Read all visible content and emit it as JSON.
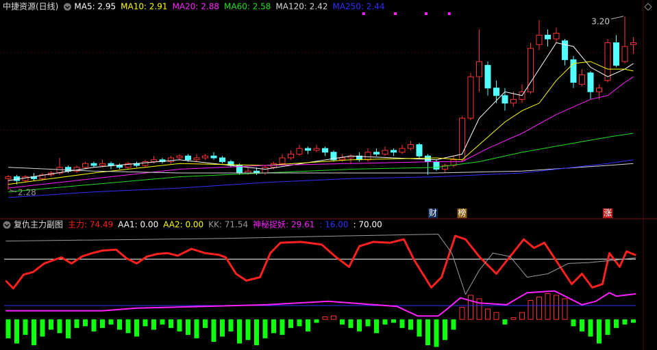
{
  "chart_data": [
    {
      "type": "candlestick",
      "title": "中捷资源(日线)",
      "up_color": "#ff3232",
      "down_color": "#54ffff",
      "open": [
        2.34,
        2.35,
        2.33,
        2.35,
        2.34,
        2.36,
        2.37,
        2.4,
        2.38,
        2.4,
        2.42,
        2.41,
        2.42,
        2.41,
        2.4,
        2.42,
        2.41,
        2.43,
        2.44,
        2.43,
        2.45,
        2.46,
        2.44,
        2.45,
        2.46,
        2.45,
        2.43,
        2.41,
        2.37,
        2.38,
        2.37,
        2.4,
        2.42,
        2.45,
        2.47,
        2.5,
        2.49,
        2.5,
        2.48,
        2.44,
        2.45,
        2.46,
        2.44,
        2.48,
        2.47,
        2.49,
        2.48,
        2.5,
        2.52,
        2.46,
        2.43,
        2.39,
        2.41,
        2.44,
        2.66,
        2.88,
        2.94,
        2.82,
        2.78,
        2.74,
        2.76,
        2.8,
        3.05,
        3.1,
        3.08,
        3.07,
        2.97,
        2.84,
        2.9,
        2.8,
        2.86,
        3.06,
        2.96,
        3.05
      ],
      "close": [
        2.35,
        2.33,
        2.35,
        2.34,
        2.36,
        2.37,
        2.4,
        2.38,
        2.4,
        2.42,
        2.41,
        2.42,
        2.41,
        2.4,
        2.42,
        2.41,
        2.43,
        2.44,
        2.43,
        2.45,
        2.46,
        2.44,
        2.45,
        2.46,
        2.45,
        2.43,
        2.41,
        2.37,
        2.38,
        2.37,
        2.4,
        2.42,
        2.45,
        2.47,
        2.5,
        2.49,
        2.5,
        2.48,
        2.44,
        2.45,
        2.46,
        2.44,
        2.48,
        2.47,
        2.49,
        2.48,
        2.5,
        2.52,
        2.46,
        2.43,
        2.39,
        2.41,
        2.44,
        2.66,
        2.88,
        2.96,
        2.82,
        2.78,
        2.74,
        2.76,
        2.8,
        3.03,
        3.1,
        3.08,
        3.11,
        2.97,
        2.85,
        2.89,
        2.8,
        2.82,
        3.06,
        2.94,
        3.04,
        3.06
      ],
      "high": [
        2.36,
        2.36,
        2.36,
        2.37,
        2.37,
        2.38,
        2.45,
        2.41,
        2.41,
        2.43,
        2.43,
        2.44,
        2.43,
        2.42,
        2.43,
        2.43,
        2.44,
        2.46,
        2.45,
        2.46,
        2.47,
        2.47,
        2.47,
        2.47,
        2.48,
        2.46,
        2.44,
        2.42,
        2.4,
        2.4,
        2.41,
        2.43,
        2.47,
        2.49,
        2.52,
        2.51,
        2.52,
        2.51,
        2.49,
        2.47,
        2.47,
        2.48,
        2.5,
        2.5,
        2.51,
        2.5,
        2.52,
        2.54,
        2.53,
        2.47,
        2.44,
        2.42,
        2.46,
        2.67,
        2.9,
        3.13,
        2.96,
        2.86,
        2.82,
        2.8,
        2.84,
        3.06,
        3.18,
        3.13,
        3.14,
        3.08,
        2.99,
        2.92,
        2.91,
        2.84,
        3.08,
        3.1,
        3.2,
        3.09
      ],
      "low": [
        2.28,
        2.31,
        2.32,
        2.33,
        2.33,
        2.35,
        2.36,
        2.37,
        2.37,
        2.39,
        2.4,
        2.4,
        2.39,
        2.39,
        2.39,
        2.4,
        2.4,
        2.42,
        2.42,
        2.42,
        2.44,
        2.43,
        2.43,
        2.44,
        2.44,
        2.42,
        2.4,
        2.36,
        2.36,
        2.36,
        2.36,
        2.39,
        2.41,
        2.44,
        2.46,
        2.47,
        2.48,
        2.46,
        2.43,
        2.43,
        2.42,
        2.43,
        2.43,
        2.46,
        2.46,
        2.46,
        2.47,
        2.49,
        2.45,
        2.36,
        2.38,
        2.37,
        2.4,
        2.43,
        2.65,
        2.8,
        2.78,
        2.74,
        2.7,
        2.72,
        2.74,
        2.79,
        3.02,
        3.04,
        3.06,
        2.94,
        2.82,
        2.83,
        2.76,
        2.76,
        2.85,
        2.93,
        2.95,
        3.0
      ],
      "ylim": [
        2.2,
        3.25
      ],
      "series": [
        {
          "name": "MA5",
          "label": "MA5: 2.95",
          "color": "#ffffff",
          "x": [
            0,
            10,
            20,
            30,
            40,
            50,
            53,
            55,
            58,
            60,
            62,
            64,
            66,
            68,
            70,
            72,
            73
          ],
          "values": [
            2.33,
            2.4,
            2.44,
            2.39,
            2.46,
            2.44,
            2.47,
            2.66,
            2.8,
            2.78,
            2.92,
            3.06,
            3.04,
            2.93,
            2.88,
            2.92,
            2.95
          ]
        },
        {
          "name": "MA10",
          "label": "MA10: 2.91",
          "color": "#ffff00",
          "x": [
            0,
            10,
            20,
            30,
            40,
            50,
            53,
            55,
            58,
            60,
            62,
            64,
            66,
            68,
            70,
            72,
            73
          ],
          "values": [
            2.31,
            2.37,
            2.42,
            2.41,
            2.44,
            2.45,
            2.44,
            2.52,
            2.64,
            2.7,
            2.74,
            2.86,
            2.95,
            2.96,
            2.92,
            2.92,
            2.91
          ]
        },
        {
          "name": "MA20",
          "label": "MA20: 2.88",
          "color": "#ff20ff",
          "x": [
            0,
            10,
            20,
            30,
            40,
            50,
            53,
            56,
            60,
            64,
            68,
            70,
            72,
            73
          ],
          "values": [
            2.29,
            2.34,
            2.39,
            2.41,
            2.42,
            2.43,
            2.43,
            2.5,
            2.58,
            2.68,
            2.76,
            2.78,
            2.85,
            2.88
          ]
        },
        {
          "name": "MA60",
          "label": "MA60: 2.58",
          "color": "#20e020",
          "x": [
            0,
            10,
            20,
            30,
            40,
            50,
            55,
            60,
            65,
            70,
            73
          ],
          "values": [
            2.27,
            2.31,
            2.35,
            2.37,
            2.39,
            2.4,
            2.43,
            2.48,
            2.52,
            2.56,
            2.58
          ]
        },
        {
          "name": "MA120",
          "label": "MA120: 2.42",
          "color": "#d8d8d8",
          "x": [
            0,
            10,
            20,
            30,
            40,
            50,
            60,
            70,
            73
          ],
          "values": [
            2.4,
            2.38,
            2.37,
            2.37,
            2.37,
            2.37,
            2.38,
            2.41,
            2.42
          ]
        },
        {
          "name": "MA250",
          "label": "MA250: 2.44",
          "color": "#3030ff",
          "x": [
            0,
            10,
            20,
            30,
            40,
            50,
            60,
            70,
            73
          ],
          "values": [
            2.24,
            2.27,
            2.29,
            2.32,
            2.34,
            2.35,
            2.37,
            2.42,
            2.44
          ]
        }
      ],
      "annotations": [
        {
          "x": 72,
          "value": 3.2,
          "label": "3.20"
        },
        {
          "x": 0,
          "value": 2.28,
          "label": "2.28"
        }
      ],
      "markers": [
        {
          "x": 49.6,
          "text": "财",
          "color": "#0a2a5a"
        },
        {
          "x": 53,
          "text": "榜",
          "color": "#8a5a10"
        },
        {
          "x": 70,
          "text": "涨",
          "color": "#c01818"
        }
      ],
      "signals": {
        "color": "#ff20ff",
        "x": [
          41.5,
          45.2,
          48.8,
          51.5
        ]
      }
    },
    {
      "type": "indicator",
      "title": "复仇主力副图",
      "ylim": [
        -34,
        105
      ],
      "bars": {
        "up_color": "#ff3232",
        "down_color": "#10ff10",
        "values": [
          -22,
          -28,
          -18,
          -30,
          -20,
          -12,
          -16,
          -22,
          -10,
          -8,
          -14,
          -10,
          -6,
          -12,
          -16,
          -20,
          -8,
          -12,
          -6,
          -10,
          -14,
          -18,
          -22,
          -10,
          -26,
          -20,
          -14,
          -28,
          -24,
          -30,
          -22,
          -16,
          -18,
          -10,
          -8,
          -14,
          -4,
          3,
          4,
          -6,
          -10,
          -14,
          -8,
          -16,
          -6,
          -4,
          -10,
          -12,
          -20,
          -30,
          -32,
          -24,
          -12,
          14,
          28,
          24,
          12,
          8,
          -6,
          2,
          8,
          22,
          26,
          30,
          28,
          24,
          -8,
          -14,
          -20,
          -28,
          -18,
          -10,
          -6,
          -4
        ]
      },
      "hlines": [
        {
          "value": 16,
          "label": ": 16.00",
          "color": "#3030ff"
        },
        {
          "value": 70,
          "label": ": 70.00",
          "color": "#ffffff"
        }
      ],
      "series": [
        {
          "name": "主力",
          "label": "主力: 74.49",
          "color": "#ff2020",
          "width": 3,
          "x": [
            -0.3,
            0.6,
            1.8,
            2.9,
            4.2,
            6.2,
            7.4,
            8.6,
            9.8,
            11,
            12.6,
            13.8,
            15,
            16.2,
            17.4,
            18.6,
            19.8,
            21.4,
            23,
            24.6,
            25.4,
            26.6,
            27.8,
            29.4,
            30.6,
            31.8,
            34.2,
            36.6,
            38.2,
            39.8,
            41,
            42.6,
            44.6,
            46.2,
            47.4,
            49.4,
            50.6,
            52.2,
            53.4,
            55,
            57,
            58.6,
            60.2,
            61.4,
            62.6,
            64.2,
            65.8,
            67,
            68.2,
            69.4,
            70.2,
            71.4,
            72.2,
            73.3
          ],
          "values": [
            45,
            36,
            52,
            55,
            65,
            72,
            65,
            73,
            77,
            80,
            81,
            71,
            65,
            73,
            76,
            77,
            74,
            82,
            77,
            75,
            72,
            53,
            45,
            49,
            77,
            89,
            90,
            87,
            73,
            61,
            85,
            90,
            89,
            93,
            69,
            37,
            49,
            97,
            93,
            73,
            53,
            73,
            93,
            83,
            89,
            65,
            41,
            53,
            37,
            41,
            77,
            61,
            79,
            74.49
          ]
        },
        {
          "name": "AA1",
          "label": "AA1: 0.00",
          "color": "#ffffff"
        },
        {
          "name": "AA2",
          "label": "AA2: 0.00",
          "color": "#ffff00"
        },
        {
          "name": "KK",
          "label": "KK: 71.54",
          "color": "#9a9a9a",
          "width": 1,
          "x": [
            -0.3,
            25.4,
            39,
            50.2,
            51.8,
            53.4,
            55,
            56.6,
            58.6,
            60.6,
            63,
            65.4,
            67.8,
            71,
            73.3
          ],
          "values": [
            91,
            94,
            97,
            99,
            77,
            29,
            57,
            77,
            73,
            49,
            53,
            65,
            66,
            69,
            71.54
          ]
        },
        {
          "name": "神秘捉妖",
          "label": "神秘捉妖: 29.61",
          "color": "#ff20ff",
          "width": 2,
          "x": [
            -0.3,
            11,
            15,
            30.2,
            37.4,
            45.4,
            47.8,
            50.2,
            51,
            52.8,
            55,
            58.2,
            60.6,
            63.8,
            65.4,
            67,
            68.6,
            70.2,
            71,
            73.3
          ],
          "values": [
            10,
            10,
            13,
            17,
            21,
            15,
            4,
            4,
            10,
            25,
            19,
            17,
            31,
            33,
            25,
            17,
            21,
            31,
            27,
            29.61
          ]
        }
      ]
    }
  ]
}
